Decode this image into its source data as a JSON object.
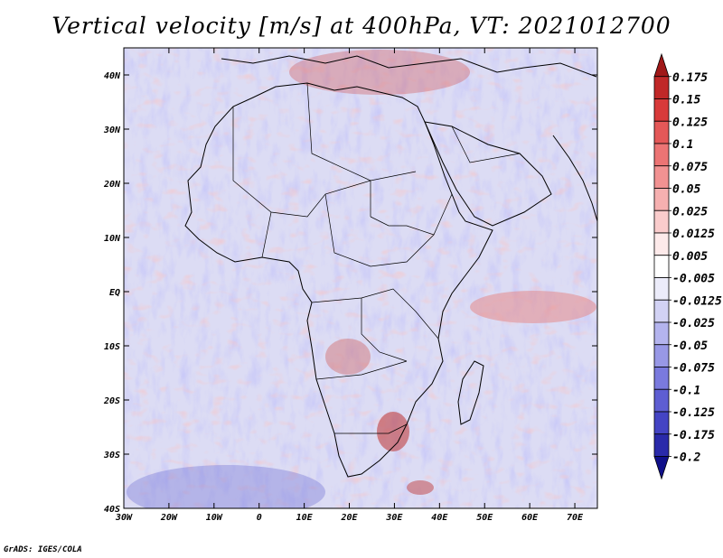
{
  "title": "Vertical velocity [m/s] at 400hPa, VT: 2021012700",
  "credit": "GrADS: IGES/COLA",
  "map": {
    "lon_range": [
      -30,
      75
    ],
    "lat_range": [
      -40,
      45
    ],
    "lon_ticks": [
      "30W",
      "20W",
      "10W",
      "0",
      "10E",
      "20E",
      "30E",
      "40E",
      "50E",
      "60E",
      "70E"
    ],
    "lat_ticks": [
      "40N",
      "30N",
      "20N",
      "10N",
      "EQ",
      "10S",
      "20S",
      "30S",
      "40S"
    ],
    "background_color": "#dcdcf4"
  },
  "colorbar": {
    "levels": [
      "0.175",
      "0.15",
      "0.125",
      "0.1",
      "0.075",
      "0.05",
      "0.025",
      "0.0125",
      "0.005",
      "-0.005",
      "-0.0125",
      "-0.025",
      "-0.05",
      "-0.075",
      "-0.1",
      "-0.125",
      "-0.175",
      "-0.2"
    ],
    "colors": [
      "#a01818",
      "#c02828",
      "#d83a3a",
      "#e45858",
      "#ec7474",
      "#f29292",
      "#f6b0b0",
      "#facccc",
      "#fdeaea",
      "#ffffff",
      "#ececfa",
      "#d2d2f4",
      "#b4b4ee",
      "#9898e6",
      "#7a7ade",
      "#5e5ed2",
      "#4444c4",
      "#2a2aaa",
      "#10108a"
    ]
  }
}
